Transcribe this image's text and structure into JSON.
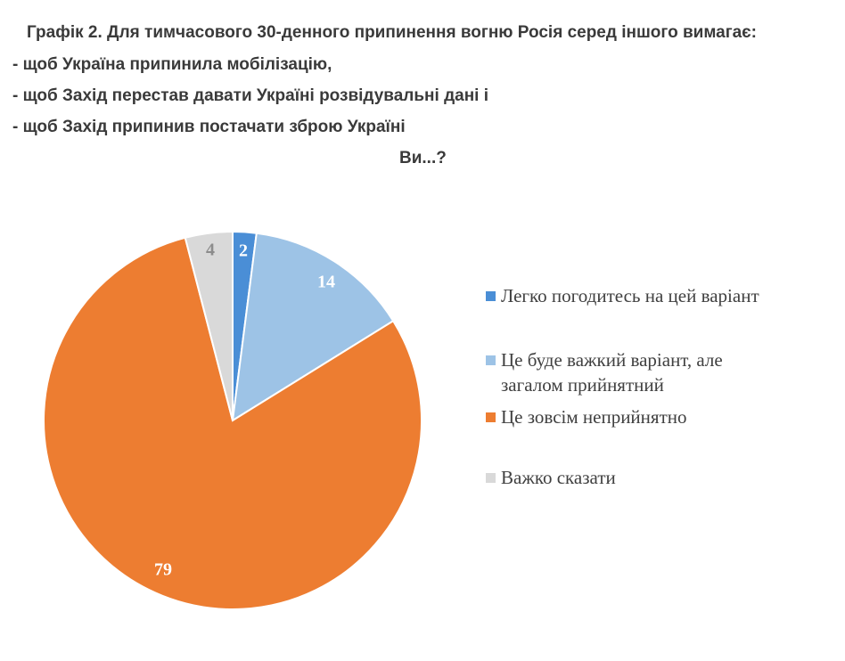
{
  "title_lines": [
    "Графік 2. Для тимчасового 30-денного припинення вогню Росія серед іншого вимагає:",
    "- щоб Україна припинила мобілізацію,",
    "- щоб Захід перестав давати Україні розвідувальні дані і",
    "- щоб Захід припинив постачати зброю Україні",
    "Ви...?"
  ],
  "chart_data": {
    "type": "pie",
    "categories": [
      "Легко погодитесь на цей варіант",
      "Це буде важкий варіант, але загалом прийнятний",
      "Це зовсім неприйнятно",
      "Важко сказати"
    ],
    "values": [
      2,
      14,
      79,
      4
    ],
    "labels": [
      "2",
      "14",
      "79",
      "4"
    ],
    "colors": [
      "#4a8ed6",
      "#9dc3e6",
      "#ed7d31",
      "#d9d9d9"
    ],
    "label_colors": [
      "#ffffff",
      "#ffffff",
      "#ffffff",
      "#8c8c8c"
    ],
    "start_angle": "12 o'clock",
    "direction": "clockwise",
    "legend_position": "right"
  }
}
